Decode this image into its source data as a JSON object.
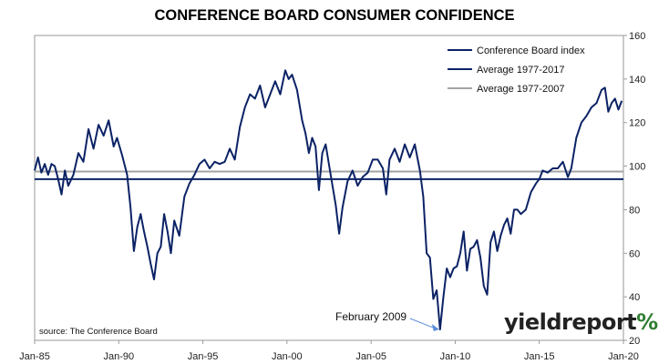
{
  "chart_data": {
    "type": "line",
    "title": "CONFERENCE BOARD CONSUMER CONFIDENCE",
    "x_ticks": [
      "Jan-85",
      "Jan-90",
      "Jan-95",
      "Jan-00",
      "Jan-05",
      "Jan-10",
      "Jan-15",
      "Jan-20"
    ],
    "y_ticks": [
      "20",
      "40",
      "60",
      "80",
      "100",
      "120",
      "140",
      "160"
    ],
    "xlim": [
      1985.0,
      2020.0
    ],
    "ylim": [
      20,
      160
    ],
    "grid": false,
    "legend_position": "top-right",
    "series": [
      {
        "name": "Conference Board index",
        "color": "#0b2265",
        "x": [
          1985.0,
          1985.2,
          1985.4,
          1985.6,
          1985.8,
          1986.0,
          1986.2,
          1986.4,
          1986.6,
          1986.8,
          1987.0,
          1987.3,
          1987.6,
          1987.9,
          1988.2,
          1988.5,
          1988.8,
          1989.1,
          1989.4,
          1989.7,
          1989.9,
          1990.2,
          1990.5,
          1990.7,
          1990.9,
          1991.1,
          1991.3,
          1991.5,
          1991.7,
          1991.9,
          1992.1,
          1992.3,
          1992.5,
          1992.7,
          1992.9,
          1993.1,
          1993.3,
          1993.6,
          1993.9,
          1994.2,
          1994.5,
          1994.8,
          1995.1,
          1995.4,
          1995.7,
          1996.0,
          1996.3,
          1996.6,
          1996.9,
          1997.2,
          1997.5,
          1997.8,
          1998.1,
          1998.4,
          1998.7,
          1999.0,
          1999.3,
          1999.6,
          1999.9,
          2000.1,
          2000.3,
          2000.6,
          2000.9,
          2001.1,
          2001.3,
          2001.5,
          2001.7,
          2001.9,
          2002.1,
          2002.3,
          2002.6,
          2002.9,
          2003.1,
          2003.3,
          2003.6,
          2003.9,
          2004.2,
          2004.5,
          2004.8,
          2005.1,
          2005.4,
          2005.7,
          2005.9,
          2006.1,
          2006.4,
          2006.7,
          2007.0,
          2007.3,
          2007.6,
          2007.9,
          2008.1,
          2008.3,
          2008.5,
          2008.7,
          2008.9,
          2009.1,
          2009.3,
          2009.5,
          2009.7,
          2009.9,
          2010.1,
          2010.3,
          2010.5,
          2010.7,
          2010.9,
          2011.1,
          2011.3,
          2011.5,
          2011.7,
          2011.9,
          2012.1,
          2012.3,
          2012.5,
          2012.7,
          2012.9,
          2013.1,
          2013.3,
          2013.5,
          2013.7,
          2013.9,
          2014.2,
          2014.5,
          2014.8,
          2015.0,
          2015.2,
          2015.5,
          2015.8,
          2016.1,
          2016.4,
          2016.7,
          2016.9,
          2017.2,
          2017.5,
          2017.8,
          2018.1,
          2018.4,
          2018.7,
          2018.9,
          2019.1,
          2019.3,
          2019.5,
          2019.7,
          2019.9
        ],
        "values": [
          98,
          104,
          97,
          101,
          96,
          101,
          100,
          94,
          87,
          98,
          91,
          96,
          106,
          102,
          117,
          108,
          119,
          114,
          121,
          109,
          113,
          105,
          96,
          81,
          61,
          72,
          78,
          70,
          63,
          55,
          48,
          60,
          63,
          78,
          70,
          60,
          75,
          68,
          86,
          92,
          96,
          101,
          103,
          99,
          102,
          101,
          102,
          108,
          103,
          118,
          127,
          133,
          131,
          137,
          127,
          133,
          139,
          133,
          144,
          140,
          142,
          135,
          121,
          115,
          106,
          113,
          109,
          89,
          106,
          110,
          96,
          82,
          69,
          81,
          93,
          98,
          91,
          95,
          97,
          103,
          103,
          99,
          87,
          103,
          108,
          102,
          110,
          104,
          110,
          98,
          86,
          60,
          58,
          39,
          43,
          25,
          40,
          53,
          49,
          53,
          54,
          60,
          70,
          52,
          62,
          63,
          66,
          58,
          45,
          41,
          65,
          70,
          61,
          68,
          73,
          76,
          69,
          80,
          80,
          78,
          80,
          88,
          92,
          94,
          98,
          97,
          99,
          99,
          102,
          95,
          99,
          113,
          120,
          123,
          127,
          129,
          135,
          136,
          125,
          129,
          131,
          126,
          130
        ]
      },
      {
        "name": "Average 1977-2017",
        "color": "#0b2265",
        "values": [
          94,
          94
        ]
      },
      {
        "name": "Average 1977-2007",
        "color": "#a3a3a3",
        "values": [
          97.5,
          97.5
        ]
      }
    ],
    "annotation": {
      "label": "February 2009",
      "x": 2009.1,
      "y": 25
    },
    "source_note": "source: The Conference Board"
  },
  "brand": {
    "name": "yieldreport",
    "suffix": "%"
  }
}
